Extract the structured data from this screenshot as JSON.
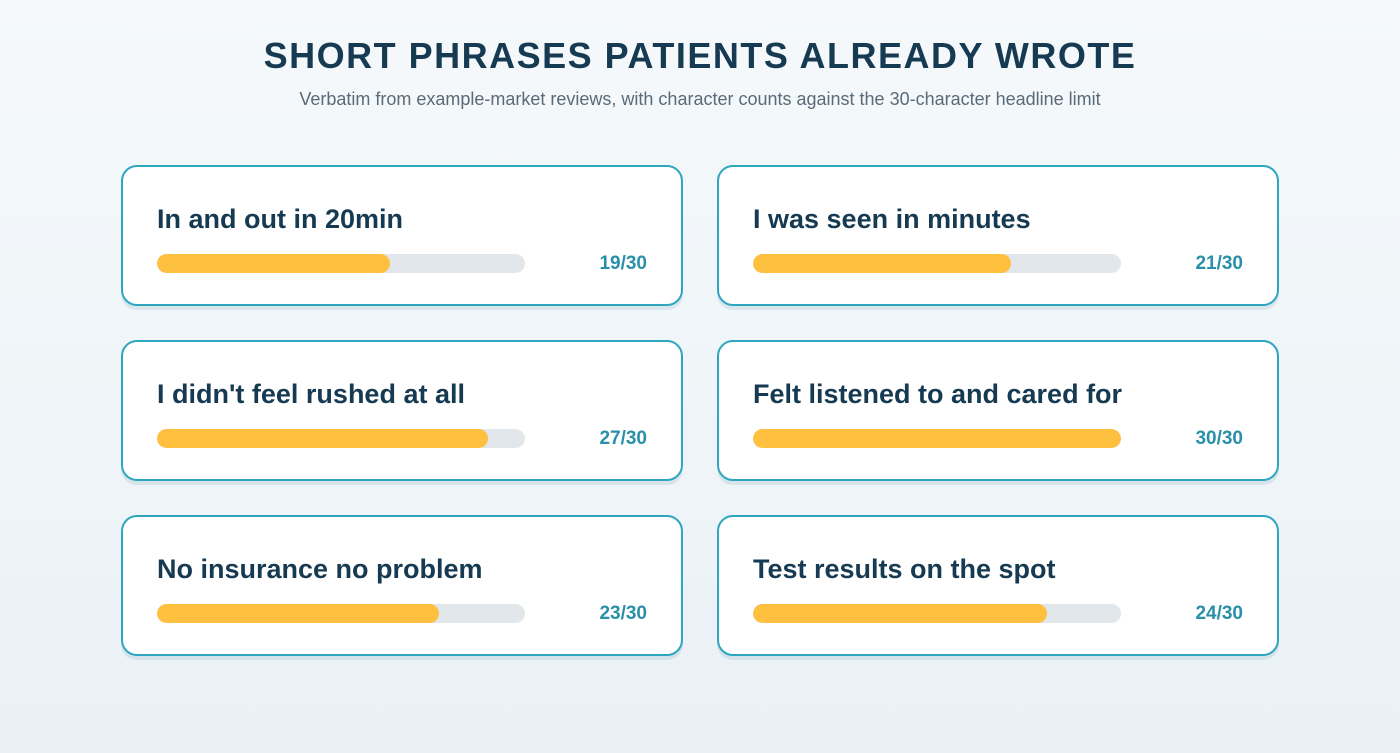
{
  "header": {
    "title": "SHORT PHRASES PATIENTS ALREADY WROTE",
    "subtitle": "Verbatim from example-market reviews, with character counts against the 30-character headline limit"
  },
  "colors": {
    "accent": "#2ea6bf",
    "bar_fill": "#ffbf3f",
    "bar_track": "#e1e7ea",
    "title": "#163a52",
    "count": "#2a8fa8"
  },
  "limit": 30,
  "phrases": [
    {
      "text": "In and out in 20min",
      "chars": 19,
      "count_label": "19/30"
    },
    {
      "text": "I was seen in minutes",
      "chars": 21,
      "count_label": "21/30"
    },
    {
      "text": "I didn't feel rushed at all",
      "chars": 27,
      "count_label": "27/30"
    },
    {
      "text": "Felt listened to and cared for",
      "chars": 30,
      "count_label": "30/30"
    },
    {
      "text": "No insurance no problem",
      "chars": 23,
      "count_label": "23/30"
    },
    {
      "text": "Test results on the spot",
      "chars": 24,
      "count_label": "24/30"
    }
  ]
}
